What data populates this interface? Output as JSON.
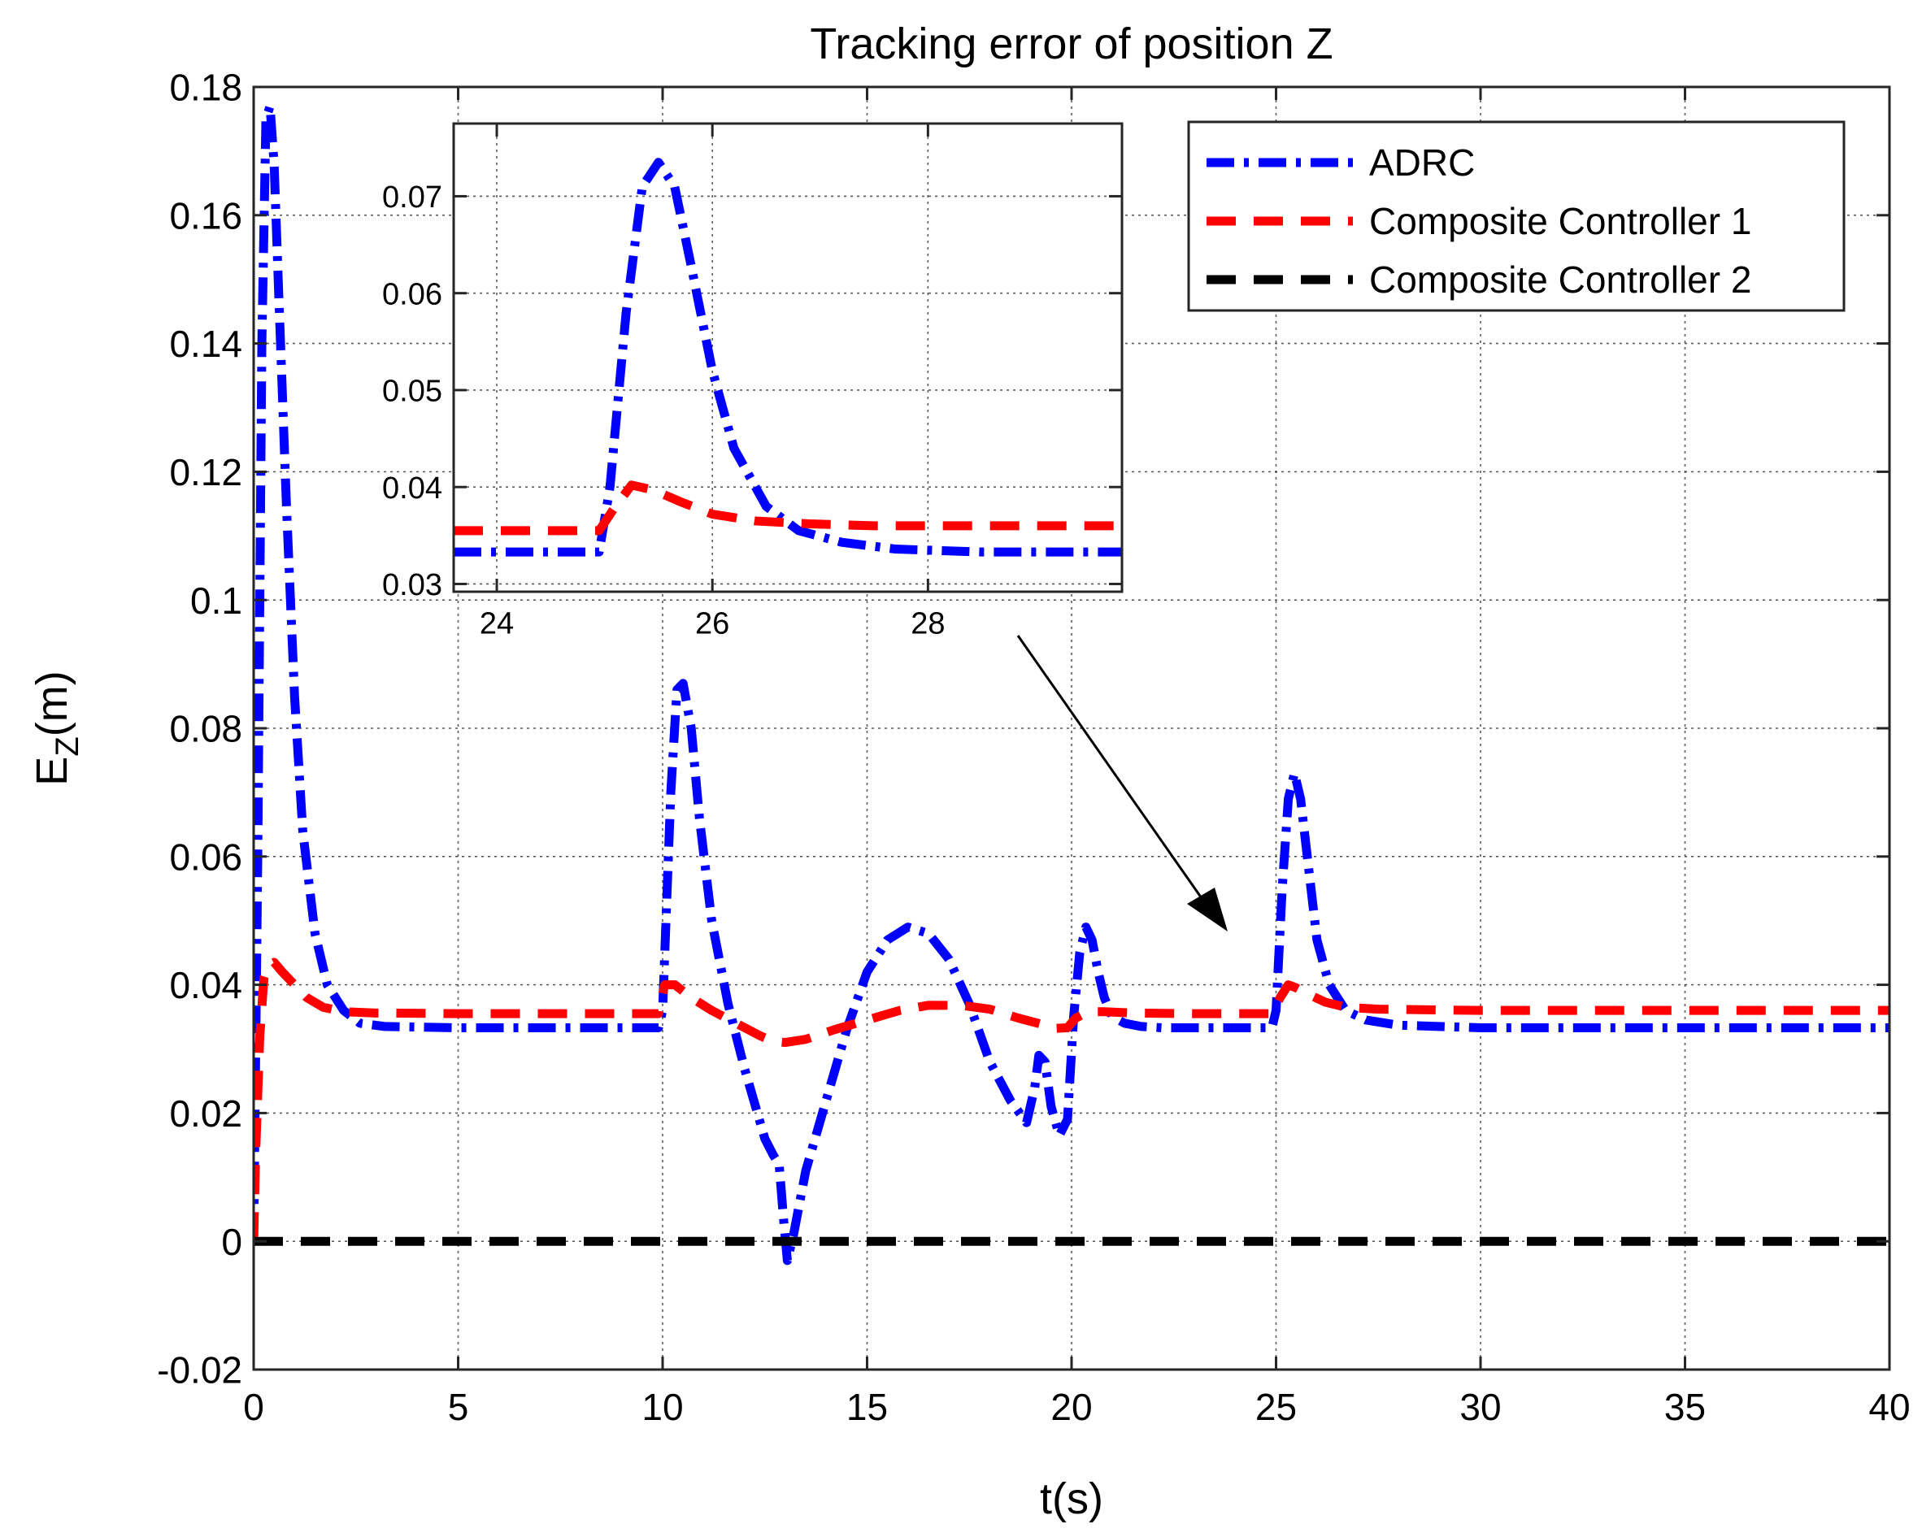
{
  "chart_data": [
    {
      "id": "main",
      "type": "line",
      "title": "Tracking error of position Z",
      "xlabel": "t(s)",
      "ylabel": "E",
      "ylabel_sub": "Z",
      "ylabel_suffix": "(m)",
      "xlim": [
        0,
        40
      ],
      "ylim": [
        -0.02,
        0.18
      ],
      "xticks": [
        0,
        5,
        10,
        15,
        20,
        25,
        30,
        35,
        40
      ],
      "xtick_labels": [
        "0",
        "5",
        "10",
        "15",
        "20",
        "25",
        "30",
        "35",
        "40"
      ],
      "yticks": [
        -0.02,
        0,
        0.02,
        0.04,
        0.06,
        0.08,
        0.1,
        0.12,
        0.14,
        0.16,
        0.18
      ],
      "ytick_labels": [
        "-0.02",
        "0",
        "0.02",
        "0.04",
        "0.06",
        "0.08",
        "0.1",
        "0.12",
        "0.14",
        "0.16",
        "0.18"
      ],
      "grid": true,
      "legend_position": "top-right",
      "series": [
        {
          "name": "ADRC",
          "color": "#0000ff",
          "dash": "dash-dot",
          "x": [
            0,
            0.1,
            0.2,
            0.3,
            0.4,
            0.5,
            0.6,
            0.8,
            1.0,
            1.2,
            1.5,
            1.8,
            2.2,
            2.6,
            3.2,
            5,
            8,
            9.9,
            10.0,
            10.2,
            10.35,
            10.5,
            10.7,
            10.9,
            11.2,
            11.6,
            12.0,
            12.5,
            12.7,
            12.85,
            12.95,
            13.05,
            13.2,
            13.5,
            14,
            14.5,
            15,
            15.5,
            16,
            16.5,
            17,
            17.5,
            18,
            18.5,
            18.9,
            19.1,
            19.2,
            19.35,
            19.5,
            19.7,
            19.9,
            20.05,
            20.2,
            20.35,
            20.5,
            20.65,
            20.8,
            21.0,
            21.3,
            21.7,
            22.2,
            23,
            24.9,
            25.0,
            25.15,
            25.3,
            25.45,
            25.6,
            25.8,
            26.0,
            26.3,
            26.7,
            27.2,
            28,
            30,
            35,
            40
          ],
          "y": [
            0,
            0.06,
            0.14,
            0.175,
            0.177,
            0.168,
            0.15,
            0.115,
            0.085,
            0.064,
            0.048,
            0.04,
            0.036,
            0.034,
            0.0335,
            0.0333,
            0.0333,
            0.0333,
            0.036,
            0.07,
            0.086,
            0.087,
            0.08,
            0.066,
            0.05,
            0.037,
            0.027,
            0.016,
            0.0135,
            0.012,
            0.004,
            -0.003,
            0.001,
            0.011,
            0.022,
            0.033,
            0.042,
            0.047,
            0.049,
            0.048,
            0.044,
            0.037,
            0.028,
            0.022,
            0.0185,
            0.024,
            0.029,
            0.028,
            0.021,
            0.0165,
            0.019,
            0.035,
            0.045,
            0.049,
            0.047,
            0.042,
            0.038,
            0.035,
            0.034,
            0.0335,
            0.0333,
            0.0333,
            0.0333,
            0.036,
            0.055,
            0.069,
            0.073,
            0.069,
            0.058,
            0.047,
            0.04,
            0.036,
            0.0345,
            0.0337,
            0.0333,
            0.0333,
            0.0333
          ]
        },
        {
          "name": "Composite Controller 1",
          "color": "#ff0000",
          "dash": "dashed",
          "x": [
            0,
            0.05,
            0.15,
            0.25,
            0.35,
            0.5,
            0.7,
            1.0,
            1.3,
            1.7,
            2.2,
            3,
            5,
            9.9,
            10.05,
            10.3,
            10.7,
            11.2,
            11.8,
            12.4,
            12.7,
            13.0,
            13.5,
            14.2,
            15,
            15.8,
            16.5,
            17.3,
            18,
            18.7,
            19.3,
            19.6,
            19.9,
            20.1,
            20.4,
            20.8,
            21.5,
            23,
            24.9,
            25.1,
            25.3,
            25.5,
            25.8,
            26.2,
            26.7,
            27.5,
            30,
            35,
            40
          ],
          "y": [
            0,
            0.014,
            0.032,
            0.041,
            0.043,
            0.0435,
            0.042,
            0.04,
            0.038,
            0.0365,
            0.0358,
            0.0356,
            0.0355,
            0.0355,
            0.04,
            0.04,
            0.038,
            0.036,
            0.034,
            0.032,
            0.0312,
            0.031,
            0.0315,
            0.033,
            0.0345,
            0.036,
            0.0368,
            0.0368,
            0.0362,
            0.0348,
            0.0338,
            0.0332,
            0.0333,
            0.0348,
            0.0358,
            0.0358,
            0.0356,
            0.0355,
            0.0355,
            0.038,
            0.04,
            0.0395,
            0.0385,
            0.0373,
            0.0365,
            0.0362,
            0.036,
            0.036,
            0.036
          ]
        },
        {
          "name": "Composite Controller 2",
          "color": "#000000",
          "dash": "dashed",
          "x": [
            0,
            10,
            20,
            30,
            40
          ],
          "y": [
            0,
            0,
            0,
            0,
            0
          ]
        }
      ]
    },
    {
      "id": "inset",
      "type": "line",
      "xlim": [
        23.6,
        29.8
      ],
      "ylim": [
        0.0292,
        0.0775
      ],
      "xticks": [
        24,
        26,
        28
      ],
      "xtick_labels": [
        "24",
        "26",
        "28"
      ],
      "yticks": [
        0.03,
        0.04,
        0.05,
        0.06,
        0.07
      ],
      "ytick_labels": [
        "0.03",
        "0.04",
        "0.05",
        "0.06",
        "0.07"
      ],
      "grid": true,
      "series": [
        {
          "color": "#0000ff",
          "dash": "dash-dot",
          "x": [
            23.6,
            24.5,
            24.95,
            25.05,
            25.2,
            25.35,
            25.5,
            25.65,
            25.8,
            26.0,
            26.2,
            26.5,
            26.8,
            27.2,
            27.7,
            28.5,
            29.8
          ],
          "y": [
            0.0333,
            0.0333,
            0.0333,
            0.04,
            0.058,
            0.071,
            0.0735,
            0.071,
            0.063,
            0.052,
            0.044,
            0.038,
            0.0355,
            0.0343,
            0.0336,
            0.0333,
            0.0333
          ]
        },
        {
          "color": "#ff0000",
          "dash": "dashed",
          "x": [
            23.6,
            24.5,
            24.95,
            25.1,
            25.25,
            25.45,
            25.7,
            26.0,
            26.4,
            26.9,
            27.5,
            28.5,
            29.8
          ],
          "y": [
            0.0355,
            0.0355,
            0.0355,
            0.038,
            0.0402,
            0.0397,
            0.0385,
            0.0372,
            0.0365,
            0.0362,
            0.036,
            0.036,
            0.036
          ]
        }
      ]
    }
  ]
}
